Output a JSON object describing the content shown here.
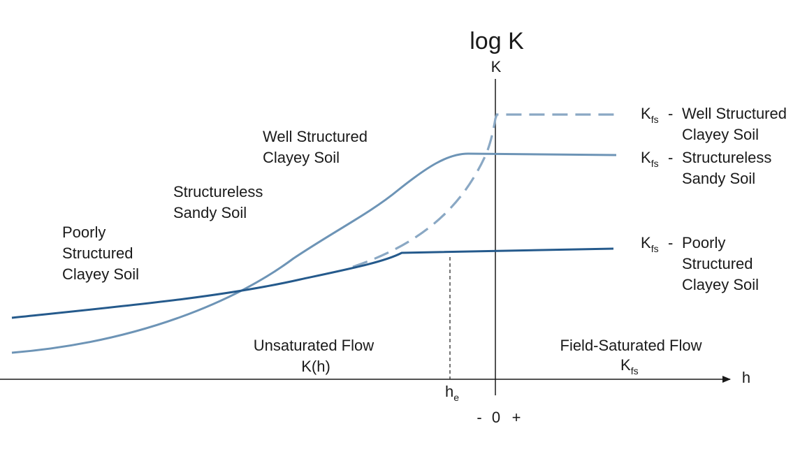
{
  "axis": {
    "title": "log K",
    "y_label": "K",
    "x_label": "h",
    "he_main": "h",
    "he_sub": "e",
    "sign_minus": "-",
    "zero": "0",
    "sign_plus": "+"
  },
  "curves": [
    {
      "id": "well-structured-clayey-soil",
      "color": "#8aa8c4",
      "style": "dashed"
    },
    {
      "id": "structureless-sandy-soil",
      "color": "#6d94b6",
      "style": "solid"
    },
    {
      "id": "poorly-structured-clayey-soil",
      "color": "#255a8c",
      "style": "solid"
    }
  ],
  "left_labels": {
    "well_structured": [
      "Well Structured",
      "Clayey Soil"
    ],
    "structureless": [
      "Structureless",
      "Sandy Soil"
    ],
    "poorly_structured": [
      "Poorly",
      "Structured",
      "Clayey Soil"
    ]
  },
  "right_labels": {
    "k_main": "K",
    "k_sub": "fs",
    "dash": "-",
    "well_structured": [
      "Well Structured",
      "Clayey Soil"
    ],
    "structureless": [
      "Structureless",
      "Sandy Soil"
    ],
    "poorly_structured": [
      "Poorly",
      "Structured",
      "Clayey Soil"
    ]
  },
  "regions": {
    "unsaturated": [
      "Unsaturated Flow",
      "K(h)"
    ],
    "saturated_title": "Field-Saturated Flow",
    "saturated_k_main": "K",
    "saturated_k_sub": "fs"
  }
}
